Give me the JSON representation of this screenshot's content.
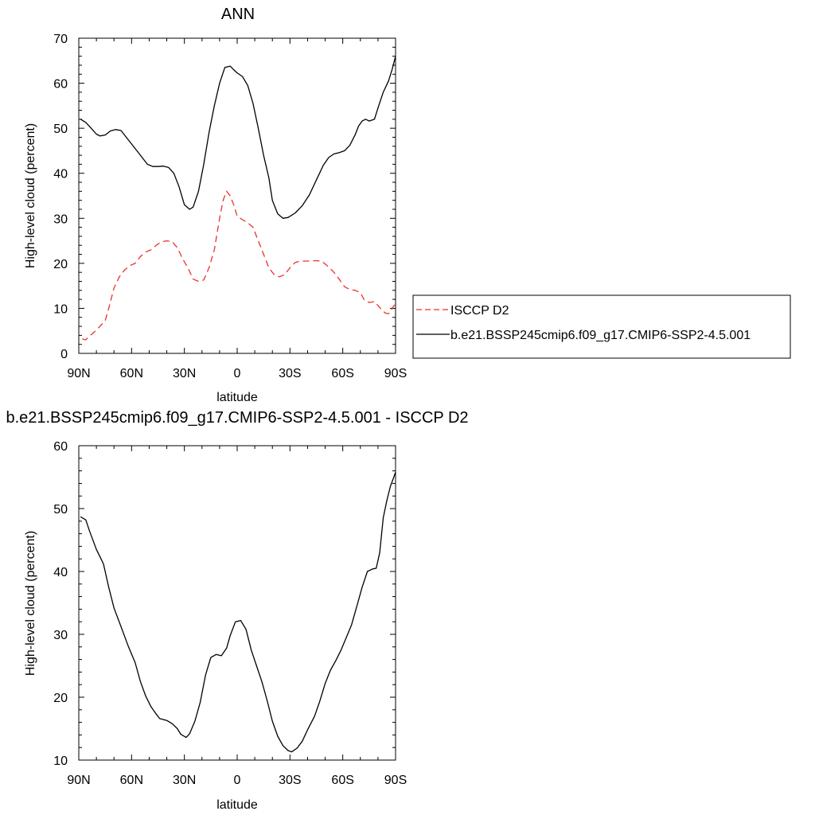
{
  "chart_data": [
    {
      "type": "line",
      "title": "ANN",
      "xlabel": "latitude",
      "ylabel": "High-level cloud (percent)",
      "xlim": [
        90,
        -90
      ],
      "ylim": [
        0,
        70
      ],
      "x_ticks": [
        90,
        60,
        30,
        0,
        -30,
        -60,
        -90
      ],
      "x_tick_labels": [
        "90N",
        "60N",
        "30N",
        "0",
        "30S",
        "60S",
        "90S"
      ],
      "y_ticks": [
        0,
        10,
        20,
        30,
        40,
        50,
        60,
        70
      ],
      "y_tick_labels": [
        "0",
        "10",
        "20",
        "30",
        "40",
        "50",
        "60",
        "70"
      ],
      "grid": false,
      "legend": {
        "position": "right",
        "entries": [
          "ISCCP D2",
          "b.e21.BSSP245cmip6.f09_g17.CMIP6-SSP2-4.5.001"
        ]
      },
      "series": [
        {
          "name": "ISCCP D2",
          "color": "#e8322a",
          "dash": "dashed",
          "points": [
            [
              88,
              3.2
            ],
            [
              86,
              3
            ],
            [
              84,
              3.8
            ],
            [
              81,
              4.8
            ],
            [
              78,
              6
            ],
            [
              75,
              7.3
            ],
            [
              73,
              10
            ],
            [
              70,
              14.5
            ],
            [
              67,
              17
            ],
            [
              64,
              18.5
            ],
            [
              61,
              19.5
            ],
            [
              58,
              20
            ],
            [
              55,
              21.5
            ],
            [
              52,
              22.5
            ],
            [
              49,
              23
            ],
            [
              46,
              24
            ],
            [
              43,
              24.8
            ],
            [
              40,
              25
            ],
            [
              37,
              24.8
            ],
            [
              34,
              23.5
            ],
            [
              31,
              21
            ],
            [
              28,
              19
            ],
            [
              25,
              16.5
            ],
            [
              22,
              16
            ],
            [
              19,
              16.3
            ],
            [
              16,
              19
            ],
            [
              13,
              23
            ],
            [
              10,
              30
            ],
            [
              8,
              34
            ],
            [
              6,
              36
            ],
            [
              4,
              35
            ],
            [
              2,
              33
            ],
            [
              0,
              30.5
            ],
            [
              -3,
              29.7
            ],
            [
              -6,
              29
            ],
            [
              -9,
              28
            ],
            [
              -12,
              25
            ],
            [
              -15,
              22
            ],
            [
              -18,
              19
            ],
            [
              -21,
              17.5
            ],
            [
              -24,
              17
            ],
            [
              -27,
              17.5
            ],
            [
              -30,
              19
            ],
            [
              -33,
              20.2
            ],
            [
              -36,
              20.5
            ],
            [
              -40,
              20.5
            ],
            [
              -44,
              20.6
            ],
            [
              -48,
              20.5
            ],
            [
              -52,
              19.2
            ],
            [
              -55,
              18
            ],
            [
              -58,
              16.5
            ],
            [
              -61,
              14.8
            ],
            [
              -64,
              14.2
            ],
            [
              -67,
              14
            ],
            [
              -70,
              13.5
            ],
            [
              -72,
              12
            ],
            [
              -75,
              11.3
            ],
            [
              -78,
              11.5
            ],
            [
              -81,
              10.2
            ],
            [
              -84,
              9
            ],
            [
              -86,
              8.8
            ],
            [
              -88,
              10
            ],
            [
              -89.5,
              10.8
            ]
          ]
        },
        {
          "name": "b.e21.BSSP245cmip6.f09_g17.CMIP6-SSP2-4.5.001",
          "color": "#000000",
          "dash": "solid",
          "points": [
            [
              89,
              52
            ],
            [
              86,
              51.3
            ],
            [
              83,
              50
            ],
            [
              80,
              48.7
            ],
            [
              78,
              48.3
            ],
            [
              75,
              48.5
            ],
            [
              72,
              49.4
            ],
            [
              69,
              49.7
            ],
            [
              66,
              49.5
            ],
            [
              63,
              48
            ],
            [
              60,
              46.5
            ],
            [
              57,
              45
            ],
            [
              54,
              43.5
            ],
            [
              51,
              42
            ],
            [
              48,
              41.5
            ],
            [
              45,
              41.5
            ],
            [
              42,
              41.6
            ],
            [
              39,
              41.3
            ],
            [
              36,
              40
            ],
            [
              33,
              37
            ],
            [
              30,
              33
            ],
            [
              27,
              32
            ],
            [
              25,
              32.5
            ],
            [
              22,
              36
            ],
            [
              19,
              42
            ],
            [
              16,
              49
            ],
            [
              13,
              55
            ],
            [
              10,
              60
            ],
            [
              7,
              63.5
            ],
            [
              4,
              63.8
            ],
            [
              2,
              63
            ],
            [
              0,
              62.3
            ],
            [
              -3,
              61.5
            ],
            [
              -6,
              59.5
            ],
            [
              -9,
              55.5
            ],
            [
              -12,
              50
            ],
            [
              -15,
              44
            ],
            [
              -18,
              39
            ],
            [
              -20,
              34
            ],
            [
              -23,
              31
            ],
            [
              -26,
              30
            ],
            [
              -29,
              30.2
            ],
            [
              -33,
              31.2
            ],
            [
              -37,
              32.8
            ],
            [
              -41,
              35.2
            ],
            [
              -45,
              38.5
            ],
            [
              -49,
              41.8
            ],
            [
              -52,
              43.5
            ],
            [
              -55,
              44.3
            ],
            [
              -58,
              44.6
            ],
            [
              -61,
              45
            ],
            [
              -64,
              46.2
            ],
            [
              -67,
              48.5
            ],
            [
              -69,
              50.5
            ],
            [
              -71,
              51.6
            ],
            [
              -73,
              52
            ],
            [
              -75,
              51.6
            ],
            [
              -78,
              52
            ],
            [
              -80,
              54.5
            ],
            [
              -83,
              58
            ],
            [
              -86,
              60.5
            ],
            [
              -88,
              63
            ],
            [
              -90,
              66
            ]
          ]
        }
      ]
    },
    {
      "type": "line",
      "title": "b.e21.BSSP245cmip6.f09_g17.CMIP6-SSP2-4.5.001 - ISCCP D2",
      "xlabel": "latitude",
      "ylabel": "High-level cloud (percent)",
      "xlim": [
        90,
        -90
      ],
      "ylim": [
        10,
        60
      ],
      "x_ticks": [
        90,
        60,
        30,
        0,
        -30,
        -60,
        -90
      ],
      "x_tick_labels": [
        "90N",
        "60N",
        "30N",
        "0",
        "30S",
        "60S",
        "90S"
      ],
      "y_ticks": [
        10,
        20,
        30,
        40,
        50,
        60
      ],
      "y_tick_labels": [
        "10",
        "20",
        "30",
        "40",
        "50",
        "60"
      ],
      "grid": false,
      "series": [
        {
          "color": "#000000",
          "dash": "solid",
          "points": [
            [
              89,
              48.7
            ],
            [
              86,
              48.2
            ],
            [
              84,
              46.5
            ],
            [
              80,
              43.5
            ],
            [
              76,
              41.2
            ],
            [
              73,
              37.5
            ],
            [
              70,
              34.2
            ],
            [
              66,
              31.2
            ],
            [
              62,
              28.2
            ],
            [
              58,
              25.5
            ],
            [
              55,
              22.5
            ],
            [
              52,
              20.2
            ],
            [
              49,
              18.5
            ],
            [
              46,
              17.3
            ],
            [
              44,
              16.6
            ],
            [
              40,
              16.3
            ],
            [
              37,
              15.8
            ],
            [
              34,
              15
            ],
            [
              32,
              14.1
            ],
            [
              29,
              13.6
            ],
            [
              27,
              14.2
            ],
            [
              24,
              16.2
            ],
            [
              21,
              19.2
            ],
            [
              18,
              23.5
            ],
            [
              15,
              26.3
            ],
            [
              12,
              26.8
            ],
            [
              9,
              26.6
            ],
            [
              6,
              27.8
            ],
            [
              4,
              29.8
            ],
            [
              1,
              32
            ],
            [
              -2,
              32.2
            ],
            [
              -5,
              30.8
            ],
            [
              -8,
              27.5
            ],
            [
              -11,
              25
            ],
            [
              -14,
              22.5
            ],
            [
              -17,
              19.5
            ],
            [
              -20,
              16.2
            ],
            [
              -23,
              13.8
            ],
            [
              -26,
              12.3
            ],
            [
              -29,
              11.5
            ],
            [
              -31,
              11.3
            ],
            [
              -34,
              11.9
            ],
            [
              -37,
              13
            ],
            [
              -40,
              14.8
            ],
            [
              -44,
              17
            ],
            [
              -47,
              19.4
            ],
            [
              -50,
              22.2
            ],
            [
              -53,
              24.3
            ],
            [
              -56,
              25.8
            ],
            [
              -59,
              27.5
            ],
            [
              -62,
              29.5
            ],
            [
              -65,
              31.5
            ],
            [
              -68,
              34.5
            ],
            [
              -71,
              37.5
            ],
            [
              -74,
              40
            ],
            [
              -77,
              40.4
            ],
            [
              -79,
              40.5
            ],
            [
              -81,
              43
            ],
            [
              -83,
              48.5
            ],
            [
              -85,
              51.2
            ],
            [
              -87,
              53.5
            ],
            [
              -89,
              55
            ],
            [
              -90,
              55.8
            ]
          ]
        }
      ]
    }
  ]
}
